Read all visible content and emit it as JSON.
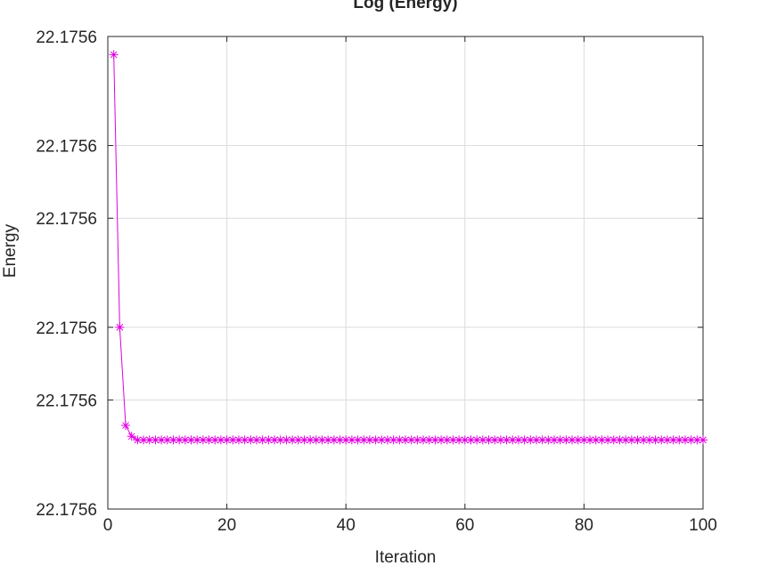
{
  "chart_data": {
    "type": "line",
    "title": "Log (Energy)",
    "x_label": "Iteration",
    "y_label": "Energy",
    "x": [
      1,
      2,
      3,
      4,
      5,
      6,
      7,
      8,
      9,
      10,
      11,
      12,
      13,
      14,
      15,
      16,
      17,
      18,
      19,
      20,
      21,
      22,
      23,
      24,
      25,
      26,
      27,
      28,
      29,
      30,
      31,
      32,
      33,
      34,
      35,
      36,
      37,
      38,
      39,
      40,
      41,
      42,
      43,
      44,
      45,
      46,
      47,
      48,
      49,
      50,
      51,
      52,
      53,
      54,
      55,
      56,
      57,
      58,
      59,
      60,
      61,
      62,
      63,
      64,
      65,
      66,
      67,
      68,
      69,
      70,
      71,
      72,
      73,
      74,
      75,
      76,
      77,
      78,
      79,
      80,
      81,
      82,
      83,
      84,
      85,
      86,
      87,
      88,
      89,
      90,
      91,
      92,
      93,
      94,
      95,
      96,
      97,
      98,
      99,
      100
    ],
    "values": [
      22.175600125,
      22.17560005,
      22.175600023,
      22.17560002,
      22.175600019,
      22.175600019,
      22.175600019,
      22.175600019,
      22.175600019,
      22.175600019,
      22.175600019,
      22.175600019,
      22.175600019,
      22.175600019,
      22.175600019,
      22.175600019,
      22.175600019,
      22.175600019,
      22.175600019,
      22.175600019,
      22.175600019,
      22.175600019,
      22.175600019,
      22.175600019,
      22.175600019,
      22.175600019,
      22.175600019,
      22.175600019,
      22.175600019,
      22.175600019,
      22.175600019,
      22.175600019,
      22.175600019,
      22.175600019,
      22.175600019,
      22.175600019,
      22.175600019,
      22.175600019,
      22.175600019,
      22.175600019,
      22.175600019,
      22.175600019,
      22.175600019,
      22.175600019,
      22.175600019,
      22.175600019,
      22.175600019,
      22.175600019,
      22.175600019,
      22.175600019,
      22.175600019,
      22.175600019,
      22.175600019,
      22.175600019,
      22.175600019,
      22.175600019,
      22.175600019,
      22.175600019,
      22.175600019,
      22.175600019,
      22.175600019,
      22.175600019,
      22.175600019,
      22.175600019,
      22.175600019,
      22.175600019,
      22.175600019,
      22.175600019,
      22.175600019,
      22.175600019,
      22.175600019,
      22.175600019,
      22.175600019,
      22.175600019,
      22.175600019,
      22.175600019,
      22.175600019,
      22.175600019,
      22.175600019,
      22.175600019,
      22.175600019,
      22.175600019,
      22.175600019,
      22.175600019,
      22.175600019,
      22.175600019,
      22.175600019,
      22.175600019,
      22.175600019,
      22.175600019,
      22.175600019,
      22.175600019,
      22.175600019,
      22.175600019,
      22.175600019,
      22.175600019,
      22.175600019,
      22.175600019,
      22.175600019,
      22.175600019
    ],
    "color": "#e000e0",
    "xlim": [
      0,
      100
    ],
    "xticks": [
      0,
      20,
      40,
      60,
      80,
      100
    ],
    "ylim": [
      22.1756,
      22.17560013
    ],
    "yticks": [
      22.1756,
      {
        "value": 22.17560003,
        "label": "22.1756"
      },
      {
        "value": 22.17560005,
        "label": "22.1756"
      },
      {
        "value": 22.17560008,
        "label": "22.1756"
      },
      {
        "value": 22.1756001,
        "label": "22.1756"
      },
      {
        "value": 22.17560013,
        "label": "22.1756"
      }
    ],
    "grid": true
  }
}
